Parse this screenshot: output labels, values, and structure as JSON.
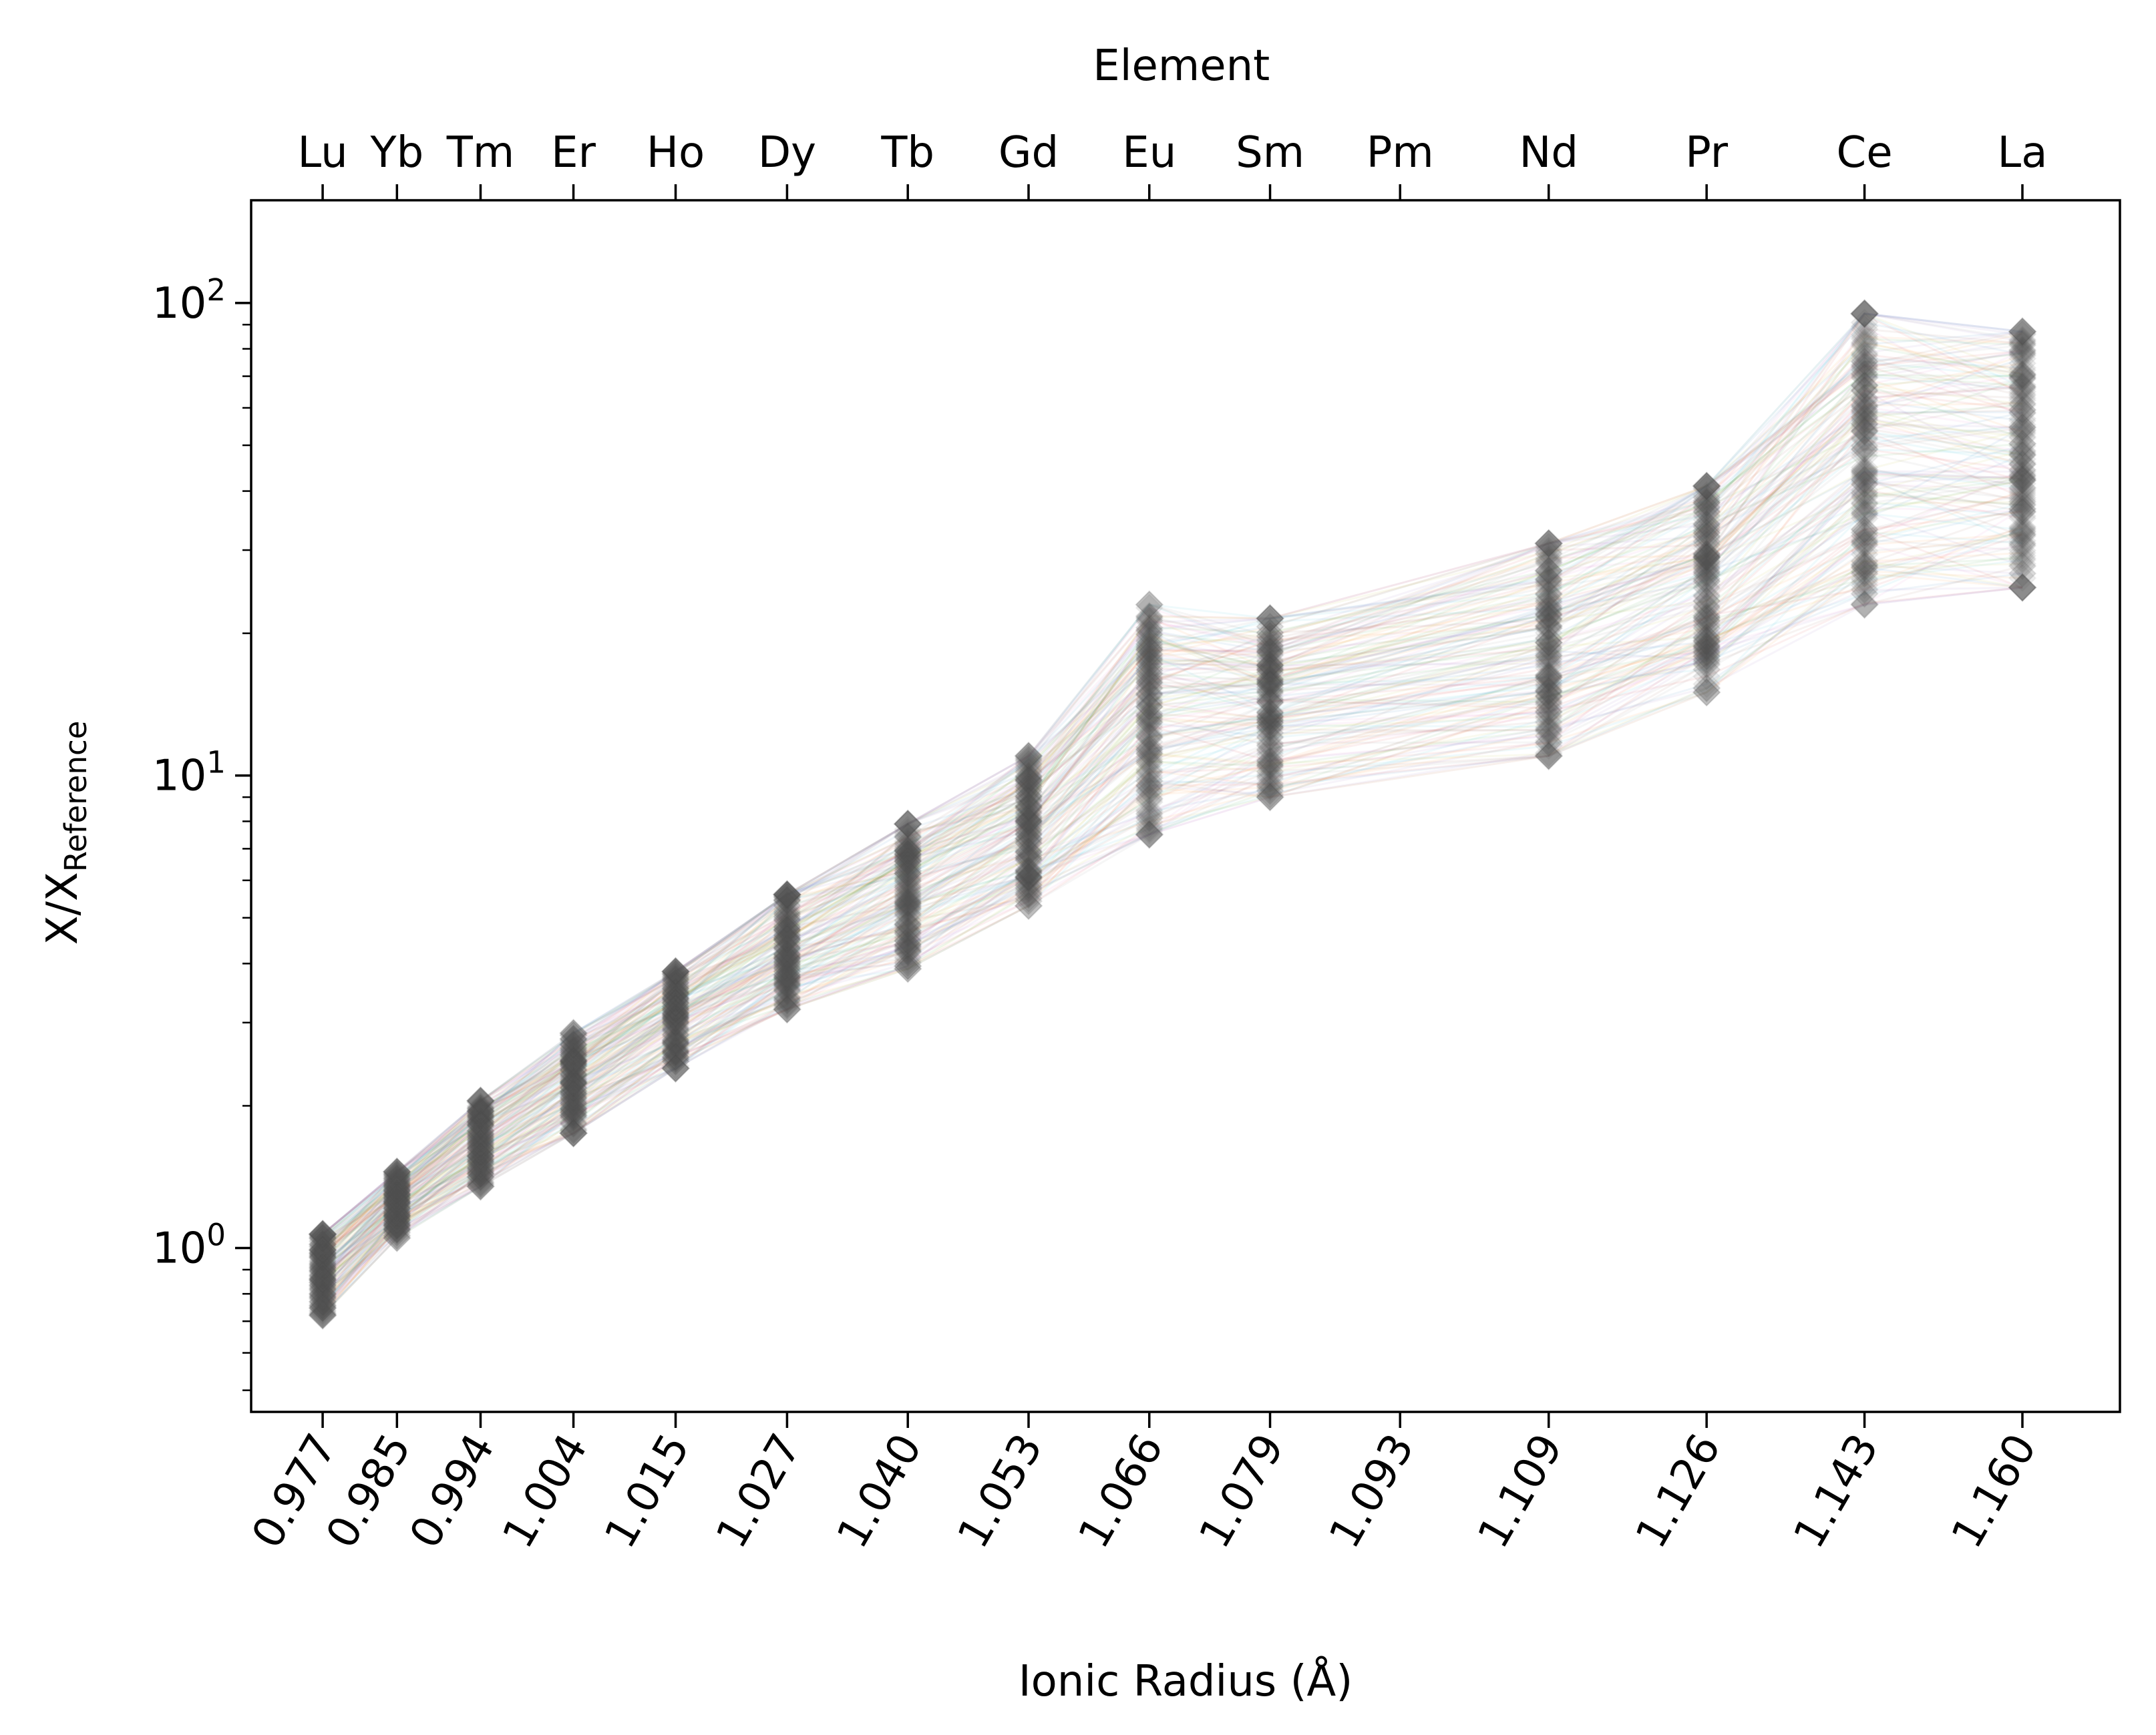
{
  "chart_data": {
    "type": "line",
    "xlabel": "Ionic Radius (Å)",
    "top_axis_label": "Element",
    "ylabel_main": "X/X",
    "ylabel_sub": "Reference",
    "y_scale": "log",
    "ylim": [
      0.45,
      165
    ],
    "xlim": [
      0.9693,
      1.1705
    ],
    "grid": false,
    "legend": "none",
    "x": [
      0.977,
      0.985,
      0.994,
      1.004,
      1.015,
      1.027,
      1.04,
      1.053,
      1.066,
      1.079,
      1.109,
      1.126,
      1.143,
      1.16
    ],
    "x_tick_labels": [
      "0.977",
      "0.985",
      "0.994",
      "1.004",
      "1.015",
      "1.027",
      "1.040",
      "1.053",
      "1.066",
      "1.079",
      "1.093",
      "1.109",
      "1.126",
      "1.143",
      "1.160"
    ],
    "x_tick_values": [
      0.977,
      0.985,
      0.994,
      1.004,
      1.015,
      1.027,
      1.04,
      1.053,
      1.066,
      1.079,
      1.093,
      1.109,
      1.126,
      1.143,
      1.16
    ],
    "elements": [
      "Lu",
      "Yb",
      "Tm",
      "Er",
      "Ho",
      "Dy",
      "Tb",
      "Gd",
      "Eu",
      "Sm",
      "Pm",
      "Nd",
      "Pr",
      "Ce",
      "La"
    ],
    "y_ticks": [
      {
        "value": 1,
        "base": "10",
        "exp": "0"
      },
      {
        "value": 10,
        "base": "10",
        "exp": "1"
      },
      {
        "value": 100,
        "base": "10",
        "exp": "2"
      }
    ],
    "ranges": [
      {
        "element": "Lu",
        "low": 0.72,
        "high": 1.07
      },
      {
        "element": "Yb",
        "low": 1.05,
        "high": 1.45
      },
      {
        "element": "Tm",
        "low": 1.35,
        "high": 2.05
      },
      {
        "element": "Er",
        "low": 1.75,
        "high": 2.85
      },
      {
        "element": "Ho",
        "low": 2.4,
        "high": 3.85
      },
      {
        "element": "Dy",
        "low": 3.2,
        "high": 5.6
      },
      {
        "element": "Tb",
        "low": 3.9,
        "high": 7.9
      },
      {
        "element": "Gd",
        "low": 5.3,
        "high": 11.0
      },
      {
        "element": "Eu",
        "low": 7.5,
        "high": 23.0
      },
      {
        "element": "Sm",
        "low": 9.0,
        "high": 21.5
      },
      {
        "element": "Nd",
        "low": 11.0,
        "high": 31.0
      },
      {
        "element": "Pr",
        "low": 15.0,
        "high": 41.0
      },
      {
        "element": "Ce",
        "low": 23.0,
        "high": 95.0
      },
      {
        "element": "La",
        "low": 25.0,
        "high": 87.0
      }
    ],
    "line_colors": [
      "#1f77b4",
      "#ff7f0e",
      "#2ca02c",
      "#d62728",
      "#9467bd",
      "#8c564b",
      "#e377c2",
      "#7f7f7f",
      "#bcbd22",
      "#17becf"
    ],
    "marker_color": "#555555",
    "marker": "diamond",
    "n_samples": 160
  }
}
